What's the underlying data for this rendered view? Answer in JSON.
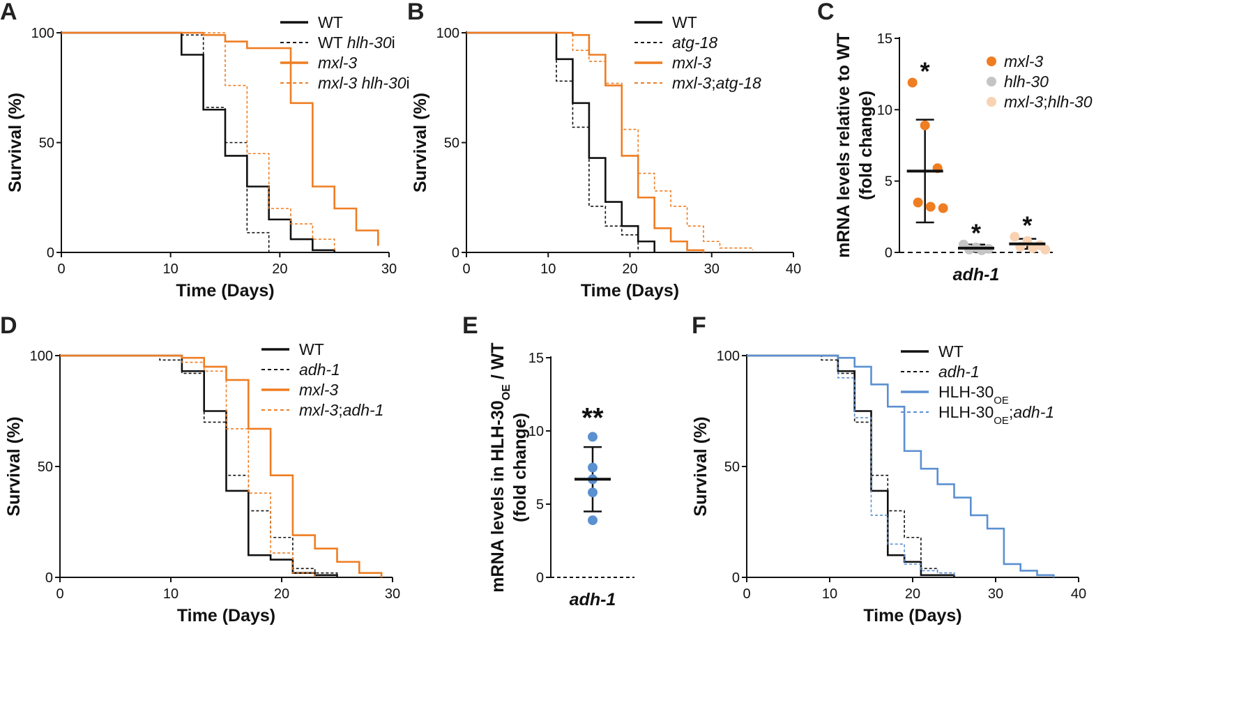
{
  "figure": {
    "panel_labels": [
      "A",
      "B",
      "C",
      "D",
      "E",
      "F"
    ]
  },
  "colors": {
    "black": "#111111",
    "orange": "#ef7d22",
    "grey": "#c4c4c4",
    "peach": "#f8d2b2",
    "blue": "#5b90d1"
  },
  "chart_data": [
    {
      "panel": "A",
      "type": "line",
      "step": true,
      "xlabel": "Time (Days)",
      "ylabel": "Survival  (%)",
      "xlim": [
        0,
        30
      ],
      "ylim": [
        0,
        100
      ],
      "xticks": [
        0,
        10,
        20,
        30
      ],
      "yticks": [
        0,
        50,
        100
      ],
      "legend_position": "top-right",
      "series": [
        {
          "name": "WT",
          "label_parts": [
            [
              "WT",
              false
            ]
          ],
          "color": "#111111",
          "dash": false,
          "x": [
            0,
            11,
            13,
            15,
            17,
            19,
            21,
            23,
            25
          ],
          "y": [
            100,
            90,
            65,
            44,
            30,
            15,
            6,
            1,
            0
          ]
        },
        {
          "name": "WT hlh-30i",
          "label_parts": [
            [
              "WT ",
              false
            ],
            [
              "hlh-30",
              true
            ],
            [
              "i",
              false
            ]
          ],
          "color": "#111111",
          "dash": true,
          "x": [
            0,
            11,
            13,
            15,
            17,
            19
          ],
          "y": [
            100,
            99,
            66,
            50,
            9,
            0
          ]
        },
        {
          "name": "mxl-3",
          "label_parts": [
            [
              "mxl-3",
              true
            ]
          ],
          "color": "#ef7d22",
          "dash": false,
          "x": [
            0,
            13,
            15,
            17,
            21,
            23,
            25,
            27,
            29
          ],
          "y": [
            100,
            99,
            96,
            93,
            68,
            30,
            20,
            10,
            3
          ]
        },
        {
          "name": "mxl-3 hlh-30i",
          "label_parts": [
            [
              "mxl-3 hlh-30",
              true
            ],
            [
              "i",
              false
            ]
          ],
          "color": "#ef7d22",
          "dash": true,
          "x": [
            0,
            15,
            17,
            19,
            21,
            23,
            25
          ],
          "y": [
            100,
            76,
            45,
            20,
            13,
            6,
            1
          ]
        }
      ]
    },
    {
      "panel": "B",
      "type": "line",
      "step": true,
      "xlabel": "Time (Days)",
      "ylabel": "Survival  (%)",
      "xlim": [
        0,
        40
      ],
      "ylim": [
        0,
        100
      ],
      "xticks": [
        0,
        10,
        20,
        30,
        40
      ],
      "yticks": [
        0,
        50,
        100
      ],
      "legend_position": "top-right",
      "series": [
        {
          "name": "WT",
          "label_parts": [
            [
              "WT",
              false
            ]
          ],
          "color": "#111111",
          "dash": false,
          "x": [
            0,
            11,
            13,
            15,
            17,
            19,
            21,
            23
          ],
          "y": [
            100,
            88,
            68,
            43,
            23,
            12,
            5,
            0
          ]
        },
        {
          "name": "atg-18",
          "label_parts": [
            [
              "atg-18",
              true
            ]
          ],
          "color": "#111111",
          "dash": true,
          "x": [
            0,
            11,
            13,
            15,
            17,
            19,
            21
          ],
          "y": [
            100,
            78,
            57,
            21,
            12,
            8,
            0
          ]
        },
        {
          "name": "mxl-3",
          "label_parts": [
            [
              "mxl-3",
              true
            ]
          ],
          "color": "#ef7d22",
          "dash": false,
          "x": [
            0,
            13,
            15,
            17,
            19,
            21,
            23,
            25,
            27,
            29
          ],
          "y": [
            100,
            99,
            90,
            76,
            44,
            25,
            11,
            5,
            1,
            0
          ]
        },
        {
          "name": "mxl-3;atg-18",
          "label_parts": [
            [
              "mxl-3",
              true
            ],
            [
              ";",
              false
            ],
            [
              "atg-18",
              true
            ]
          ],
          "color": "#ef7d22",
          "dash": true,
          "x": [
            0,
            13,
            15,
            17,
            19,
            21,
            23,
            25,
            27,
            29,
            31,
            33,
            35
          ],
          "y": [
            100,
            92,
            87,
            77,
            56,
            36,
            28,
            21,
            12,
            5,
            2,
            2,
            1
          ]
        }
      ]
    },
    {
      "panel": "C",
      "type": "scatter",
      "ylabel_lines": [
        "mRNA levels relative to WT",
        "(fold change)"
      ],
      "ylim": [
        0,
        15
      ],
      "yticks": [
        0,
        5,
        10,
        15
      ],
      "xlabel": "adh-1",
      "legend_position": "top-right",
      "groups": [
        {
          "name": "mxl-3",
          "color": "#ef7d22",
          "points": [
            11.9,
            8.9,
            5.9,
            3.5,
            3.2,
            3.1
          ],
          "mean": 5.7,
          "sd": 3.6,
          "sig": "*"
        },
        {
          "name": "hlh-30",
          "color": "#c4c4c4",
          "points": [
            0.55,
            0.35,
            0.25,
            0.2,
            0.15
          ],
          "mean": 0.3,
          "sd": 0.25,
          "sig": "*"
        },
        {
          "name": "mxl-3;hlh-30",
          "label_parts": [
            [
              "mxl-3",
              true
            ],
            [
              ";",
              false
            ],
            [
              "hlh-30",
              true
            ]
          ],
          "color": "#f8d2b2",
          "points": [
            1.1,
            0.8,
            0.5,
            0.4,
            0.3,
            0.2
          ],
          "mean": 0.6,
          "sd": 0.35,
          "sig": "*"
        }
      ]
    },
    {
      "panel": "D",
      "type": "line",
      "step": true,
      "xlabel": "Time (Days)",
      "ylabel": "Survival  (%)",
      "xlim": [
        0,
        30
      ],
      "ylim": [
        0,
        100
      ],
      "xticks": [
        0,
        10,
        20,
        30
      ],
      "yticks": [
        0,
        50,
        100
      ],
      "legend_position": "top-right",
      "series": [
        {
          "name": "WT",
          "label_parts": [
            [
              "WT",
              false
            ]
          ],
          "color": "#111111",
          "dash": false,
          "x": [
            0,
            11,
            13,
            15,
            17,
            19,
            21,
            23,
            25
          ],
          "y": [
            100,
            93,
            75,
            39,
            10,
            8,
            2,
            1,
            0
          ]
        },
        {
          "name": "adh-1",
          "label_parts": [
            [
              "adh-1",
              true
            ]
          ],
          "color": "#111111",
          "dash": true,
          "x": [
            0,
            9,
            11,
            13,
            15,
            17,
            19,
            21,
            23,
            25
          ],
          "y": [
            100,
            98,
            92,
            70,
            46,
            30,
            18,
            4,
            2,
            0
          ]
        },
        {
          "name": "mxl-3",
          "label_parts": [
            [
              "mxl-3",
              true
            ]
          ],
          "color": "#ef7d22",
          "dash": false,
          "x": [
            0,
            11,
            13,
            15,
            17,
            19,
            21,
            23,
            25,
            27,
            29
          ],
          "y": [
            100,
            99,
            95,
            89,
            67,
            46,
            19,
            13,
            7,
            2,
            0
          ]
        },
        {
          "name": "mxl-3;adh-1",
          "label_parts": [
            [
              "mxl-3",
              true
            ],
            [
              ";",
              false
            ],
            [
              "adh-1",
              true
            ]
          ],
          "color": "#ef7d22",
          "dash": true,
          "x": [
            0,
            11,
            13,
            15,
            17,
            19,
            21,
            23
          ],
          "y": [
            100,
            97,
            93,
            67,
            38,
            11,
            2,
            0
          ]
        }
      ]
    },
    {
      "panel": "E",
      "type": "scatter",
      "ylabel_lines": [
        "mRNA levels in HLH-30",
        "OE",
        " / WT",
        "(fold change)"
      ],
      "ylim": [
        0,
        15
      ],
      "yticks": [
        0,
        5,
        10,
        15
      ],
      "xlabel": "adh-1",
      "groups": [
        {
          "name": "adh-1",
          "color": "#5b90d1",
          "points": [
            9.6,
            7.5,
            6.7,
            5.8,
            3.9
          ],
          "mean": 6.7,
          "sd": 2.2,
          "sig": "**"
        }
      ]
    },
    {
      "panel": "F",
      "type": "line",
      "step": true,
      "xlabel": "Time (Days)",
      "ylabel": "Survival  (%)",
      "xlim": [
        0,
        40
      ],
      "ylim": [
        0,
        100
      ],
      "xticks": [
        0,
        10,
        20,
        30,
        40
      ],
      "yticks": [
        0,
        50,
        100
      ],
      "legend_position": "top-right",
      "series": [
        {
          "name": "WT",
          "label_parts": [
            [
              "WT",
              false
            ]
          ],
          "color": "#111111",
          "dash": false,
          "x": [
            0,
            11,
            13,
            15,
            17,
            19,
            21,
            23,
            25
          ],
          "y": [
            100,
            93,
            75,
            39,
            10,
            7,
            1,
            1,
            0
          ]
        },
        {
          "name": "adh-1",
          "label_parts": [
            [
              "adh-1",
              true
            ]
          ],
          "color": "#111111",
          "dash": true,
          "x": [
            0,
            9,
            11,
            13,
            15,
            17,
            19,
            21,
            23,
            25
          ],
          "y": [
            100,
            98,
            92,
            70,
            46,
            30,
            18,
            4,
            2,
            0
          ]
        },
        {
          "name": "HLH-30OE",
          "label_parts": [
            [
              "HLH-30",
              false
            ],
            [
              "OE",
              false,
              true
            ]
          ],
          "color": "#5b90d1",
          "dash": false,
          "x": [
            0,
            11,
            13,
            15,
            17,
            19,
            21,
            23,
            25,
            27,
            29,
            31,
            33,
            35,
            37
          ],
          "y": [
            100,
            99,
            95,
            87,
            77,
            57,
            49,
            42,
            36,
            28,
            22,
            6,
            3,
            1,
            0
          ]
        },
        {
          "name": "HLH-30OE;adh-1",
          "label_parts": [
            [
              "HLH-30",
              false
            ],
            [
              "OE",
              false,
              true
            ],
            [
              ";",
              false
            ],
            [
              "adh-1",
              true
            ]
          ],
          "color": "#5b90d1",
          "dash": true,
          "x": [
            0,
            11,
            13,
            15,
            17,
            19,
            21,
            23,
            25
          ],
          "y": [
            100,
            90,
            72,
            28,
            15,
            6,
            3,
            2,
            0
          ]
        }
      ]
    }
  ]
}
